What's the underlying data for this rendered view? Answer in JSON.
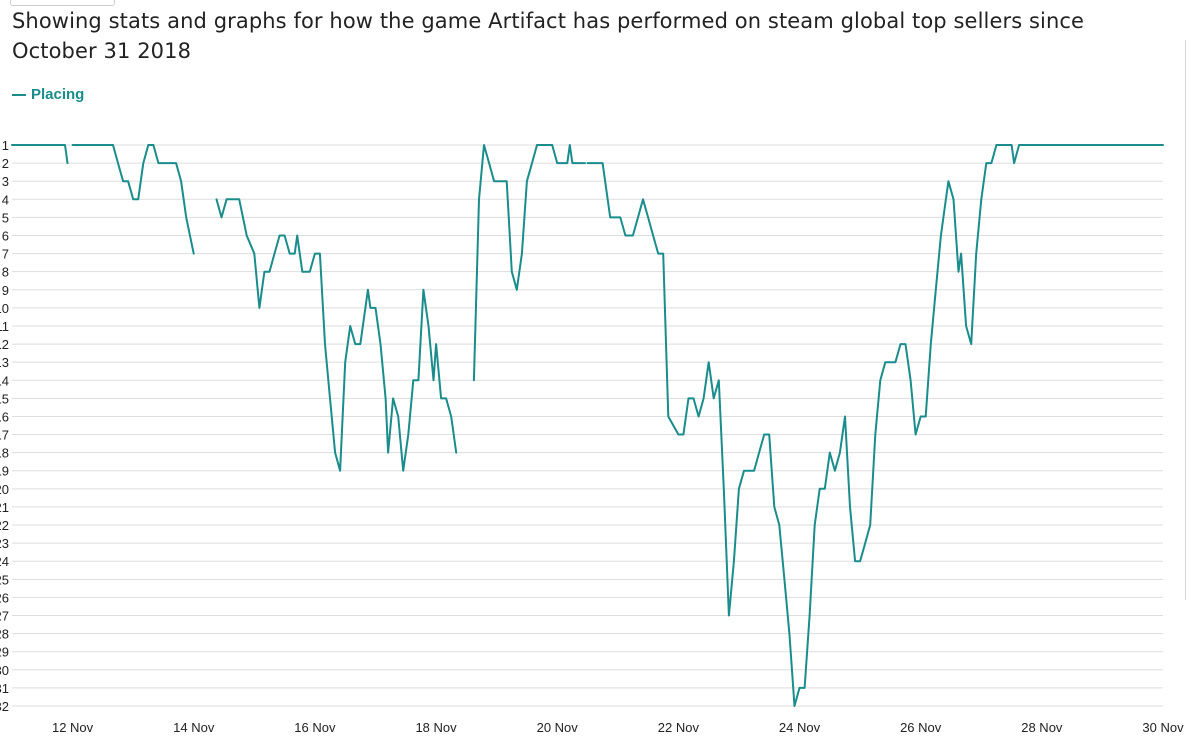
{
  "title": "Showing stats and graphs for how the game Artifact has performed on steam global top sellers since October 31 2018",
  "colors": {
    "line": "#1a8c8c",
    "grid": "#dddddd",
    "text": "#222222"
  },
  "legend": {
    "label": "Placing"
  },
  "chart_data": {
    "type": "line",
    "title": "",
    "xlabel": "",
    "ylabel": "",
    "y_inverted": true,
    "ylim": [
      1,
      32
    ],
    "yticks": [
      1,
      2,
      3,
      4,
      5,
      6,
      7,
      8,
      9,
      10,
      11,
      12,
      13,
      14,
      15,
      16,
      17,
      18,
      19,
      20,
      21,
      22,
      23,
      24,
      25,
      26,
      27,
      28,
      29,
      30,
      31,
      32
    ],
    "xlim": [
      "2018-11-11 00:00",
      "2018-11-30 00:00"
    ],
    "xticks": [
      "12 Nov",
      "14 Nov",
      "16 Nov",
      "18 Nov",
      "20 Nov",
      "22 Nov",
      "24 Nov",
      "26 Nov",
      "28 Nov",
      "30 Nov"
    ],
    "grid": true,
    "legend_position": "top-left",
    "series": [
      {
        "name": "Placing",
        "segments": [
          [
            [
              "2018-11-11 00:00",
              1
            ],
            [
              "2018-11-11 21:00",
              1
            ],
            [
              "2018-11-11 22:00",
              2
            ]
          ],
          [
            [
              "2018-11-12 00:00",
              1
            ],
            [
              "2018-11-12 16:00",
              1
            ],
            [
              "2018-11-12 18:00",
              2
            ],
            [
              "2018-11-12 20:00",
              3
            ],
            [
              "2018-11-12 22:00",
              3
            ],
            [
              "2018-11-13 00:00",
              4
            ],
            [
              "2018-11-13 02:00",
              4
            ],
            [
              "2018-11-13 04:00",
              2
            ],
            [
              "2018-11-13 06:00",
              1
            ],
            [
              "2018-11-13 08:00",
              1
            ],
            [
              "2018-11-13 10:00",
              2
            ],
            [
              "2018-11-13 17:00",
              2
            ],
            [
              "2018-11-13 19:00",
              3
            ],
            [
              "2018-11-13 21:00",
              5
            ],
            [
              "2018-11-14 00:00",
              7
            ]
          ],
          [
            [
              "2018-11-14 09:00",
              4
            ],
            [
              "2018-11-14 11:00",
              5
            ],
            [
              "2018-11-14 13:00",
              4
            ],
            [
              "2018-11-14 18:00",
              4
            ],
            [
              "2018-11-14 21:00",
              6
            ],
            [
              "2018-11-15 00:00",
              7
            ],
            [
              "2018-11-15 02:00",
              10
            ],
            [
              "2018-11-15 04:00",
              8
            ],
            [
              "2018-11-15 06:00",
              8
            ],
            [
              "2018-11-15 08:00",
              7
            ],
            [
              "2018-11-15 10:00",
              6
            ],
            [
              "2018-11-15 12:00",
              6
            ],
            [
              "2018-11-15 14:00",
              7
            ],
            [
              "2018-11-15 16:00",
              7
            ],
            [
              "2018-11-15 17:00",
              6
            ],
            [
              "2018-11-15 19:00",
              8
            ],
            [
              "2018-11-15 22:00",
              8
            ],
            [
              "2018-11-16 00:00",
              7
            ],
            [
              "2018-11-16 02:00",
              7
            ],
            [
              "2018-11-16 04:00",
              12
            ],
            [
              "2018-11-16 06:00",
              15
            ],
            [
              "2018-11-16 08:00",
              18
            ],
            [
              "2018-11-16 10:00",
              19
            ],
            [
              "2018-11-16 12:00",
              13
            ],
            [
              "2018-11-16 14:00",
              11
            ],
            [
              "2018-11-16 16:00",
              12
            ],
            [
              "2018-11-16 18:00",
              12
            ],
            [
              "2018-11-16 20:00",
              10
            ],
            [
              "2018-11-16 21:00",
              9
            ],
            [
              "2018-11-16 22:00",
              10
            ],
            [
              "2018-11-17 00:00",
              10
            ],
            [
              "2018-11-17 02:00",
              12
            ],
            [
              "2018-11-17 04:00",
              15
            ],
            [
              "2018-11-17 05:00",
              18
            ],
            [
              "2018-11-17 07:00",
              15
            ],
            [
              "2018-11-17 09:00",
              16
            ],
            [
              "2018-11-17 11:00",
              19
            ],
            [
              "2018-11-17 13:00",
              17
            ],
            [
              "2018-11-17 15:00",
              14
            ],
            [
              "2018-11-17 17:00",
              14
            ],
            [
              "2018-11-17 19:00",
              9
            ],
            [
              "2018-11-17 21:00",
              11
            ],
            [
              "2018-11-17 23:00",
              14
            ],
            [
              "2018-11-18 00:00",
              12
            ],
            [
              "2018-11-18 02:00",
              15
            ],
            [
              "2018-11-18 04:00",
              15
            ],
            [
              "2018-11-18 06:00",
              16
            ],
            [
              "2018-11-18 08:00",
              18
            ]
          ],
          [
            [
              "2018-11-18 15:00",
              14
            ],
            [
              "2018-11-18 17:00",
              4
            ],
            [
              "2018-11-18 19:00",
              1
            ],
            [
              "2018-11-18 21:00",
              2
            ],
            [
              "2018-11-18 23:00",
              3
            ],
            [
              "2018-11-19 02:00",
              3
            ],
            [
              "2018-11-19 04:00",
              3
            ],
            [
              "2018-11-19 06:00",
              8
            ],
            [
              "2018-11-19 08:00",
              9
            ],
            [
              "2018-11-19 10:00",
              7
            ],
            [
              "2018-11-19 12:00",
              3
            ],
            [
              "2018-11-19 14:00",
              2
            ],
            [
              "2018-11-19 16:00",
              1
            ],
            [
              "2018-11-19 22:00",
              1
            ],
            [
              "2018-11-20 00:00",
              2
            ],
            [
              "2018-11-20 04:00",
              2
            ],
            [
              "2018-11-20 05:00",
              1
            ],
            [
              "2018-11-20 06:00",
              2
            ],
            [
              "2018-11-20 11:00",
              2
            ]
          ],
          [
            [
              "2018-11-20 12:00",
              2
            ],
            [
              "2018-11-20 18:00",
              2
            ],
            [
              "2018-11-20 21:00",
              5
            ],
            [
              "2018-11-21 01:00",
              5
            ],
            [
              "2018-11-21 03:00",
              6
            ],
            [
              "2018-11-21 06:00",
              6
            ],
            [
              "2018-11-21 08:00",
              5
            ],
            [
              "2018-11-21 10:00",
              4
            ],
            [
              "2018-11-21 12:00",
              5
            ],
            [
              "2018-11-21 14:00",
              6
            ],
            [
              "2018-11-21 16:00",
              7
            ],
            [
              "2018-11-21 18:00",
              7
            ],
            [
              "2018-11-21 20:00",
              16
            ],
            [
              "2018-11-22 00:00",
              17
            ],
            [
              "2018-11-22 02:00",
              17
            ],
            [
              "2018-11-22 04:00",
              15
            ],
            [
              "2018-11-22 06:00",
              15
            ],
            [
              "2018-11-22 08:00",
              16
            ],
            [
              "2018-11-22 10:00",
              15
            ],
            [
              "2018-11-22 12:00",
              13
            ],
            [
              "2018-11-22 14:00",
              15
            ],
            [
              "2018-11-22 16:00",
              14
            ],
            [
              "2018-11-22 18:00",
              20
            ],
            [
              "2018-11-22 20:00",
              27
            ],
            [
              "2018-11-22 22:00",
              24
            ],
            [
              "2018-11-23 00:00",
              20
            ],
            [
              "2018-11-23 02:00",
              19
            ],
            [
              "2018-11-23 04:00",
              19
            ],
            [
              "2018-11-23 06:00",
              19
            ],
            [
              "2018-11-23 08:00",
              18
            ],
            [
              "2018-11-23 10:00",
              17
            ],
            [
              "2018-11-23 12:00",
              17
            ],
            [
              "2018-11-23 14:00",
              21
            ],
            [
              "2018-11-23 16:00",
              22
            ],
            [
              "2018-11-23 18:00",
              25
            ],
            [
              "2018-11-23 20:00",
              28
            ],
            [
              "2018-11-23 22:00",
              32
            ],
            [
              "2018-11-24 00:00",
              31
            ],
            [
              "2018-11-24 02:00",
              31
            ],
            [
              "2018-11-24 04:00",
              27
            ],
            [
              "2018-11-24 06:00",
              22
            ],
            [
              "2018-11-24 08:00",
              20
            ],
            [
              "2018-11-24 10:00",
              20
            ],
            [
              "2018-11-24 12:00",
              18
            ],
            [
              "2018-11-24 14:00",
              19
            ],
            [
              "2018-11-24 16:00",
              18
            ],
            [
              "2018-11-24 18:00",
              16
            ],
            [
              "2018-11-24 20:00",
              21
            ],
            [
              "2018-11-24 22:00",
              24
            ],
            [
              "2018-11-25 00:00",
              24
            ],
            [
              "2018-11-25 02:00",
              23
            ],
            [
              "2018-11-25 04:00",
              22
            ],
            [
              "2018-11-25 06:00",
              17
            ],
            [
              "2018-11-25 08:00",
              14
            ],
            [
              "2018-11-25 10:00",
              13
            ],
            [
              "2018-11-25 12:00",
              13
            ],
            [
              "2018-11-25 14:00",
              13
            ],
            [
              "2018-11-25 16:00",
              12
            ],
            [
              "2018-11-25 18:00",
              12
            ],
            [
              "2018-11-25 20:00",
              14
            ],
            [
              "2018-11-25 22:00",
              17
            ],
            [
              "2018-11-26 00:00",
              16
            ],
            [
              "2018-11-26 02:00",
              16
            ],
            [
              "2018-11-26 04:00",
              12
            ],
            [
              "2018-11-26 06:00",
              9
            ],
            [
              "2018-11-26 08:00",
              6
            ],
            [
              "2018-11-26 10:00",
              4
            ],
            [
              "2018-11-26 11:00",
              3
            ],
            [
              "2018-11-26 13:00",
              4
            ],
            [
              "2018-11-26 15:00",
              8
            ],
            [
              "2018-11-26 16:00",
              7
            ],
            [
              "2018-11-26 18:00",
              11
            ],
            [
              "2018-11-26 20:00",
              12
            ],
            [
              "2018-11-26 22:00",
              7
            ],
            [
              "2018-11-27 00:00",
              4
            ],
            [
              "2018-11-27 02:00",
              2
            ],
            [
              "2018-11-27 04:00",
              2
            ],
            [
              "2018-11-27 06:00",
              1
            ],
            [
              "2018-11-27 12:00",
              1
            ],
            [
              "2018-11-27 13:00",
              2
            ],
            [
              "2018-11-27 15:00",
              1
            ],
            [
              "2018-11-30 00:00",
              1
            ]
          ]
        ]
      }
    ]
  }
}
